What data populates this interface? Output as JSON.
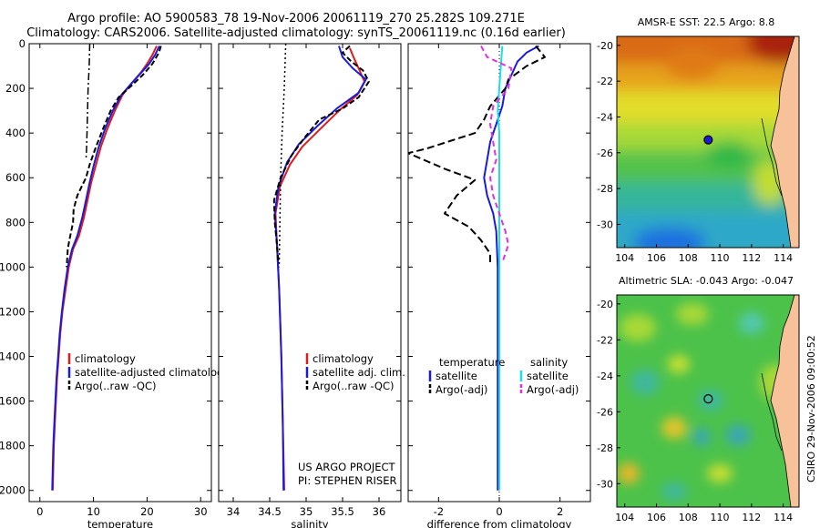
{
  "header": {
    "line1": "Argo profile: AO 5900583_78 19-Nov-2006 20061119_270 25.282S 109.271E",
    "line2": "Climatology: CARS2006. Satellite-adjusted climatology: synTS_20061119.nc (0.16d earlier)"
  },
  "side_label": "CSIRO 29-Nov-2006 09:00:52",
  "colors": {
    "clim": "#e01b1b",
    "sat": "#1a1adb",
    "argo": "#000000",
    "sat_sal": "#19e0e8",
    "argo_sal": "#e22ee2"
  },
  "chart_data": [
    {
      "type": "line",
      "xlabel": "temperature",
      "ylabel": "",
      "xlim": [
        -2,
        32
      ],
      "ylim": [
        2050,
        0
      ],
      "xticks": [
        0,
        10,
        20,
        30
      ],
      "yticks": [
        0,
        200,
        400,
        600,
        800,
        1000,
        1200,
        1400,
        1600,
        1800,
        2000
      ],
      "legend": [
        "climatology",
        "satellite-adjusted climatology",
        "Argo(..raw -QC)"
      ],
      "series": [
        {
          "name": "climatology",
          "color": "clim",
          "dash": "",
          "points": [
            [
              21.8,
              10
            ],
            [
              21,
              50
            ],
            [
              20,
              90
            ],
            [
              18.8,
              130
            ],
            [
              17,
              180
            ],
            [
              15.4,
              230
            ],
            [
              14,
              300
            ],
            [
              12.6,
              380
            ],
            [
              11.4,
              460
            ],
            [
              10.5,
              540
            ],
            [
              9.6,
              620
            ],
            [
              8.9,
              700
            ],
            [
              8.2,
              780
            ],
            [
              7.3,
              860
            ],
            [
              6.2,
              920
            ],
            [
              5.4,
              1000
            ],
            [
              4.8,
              1100
            ],
            [
              4.2,
              1200
            ],
            [
              3.8,
              1300
            ],
            [
              3.5,
              1400
            ],
            [
              3.2,
              1500
            ],
            [
              3,
              1600
            ],
            [
              2.8,
              1700
            ],
            [
              2.6,
              1800
            ],
            [
              2.5,
              1900
            ],
            [
              2.4,
              2000
            ]
          ]
        },
        {
          "name": "satellite-adjusted climatology",
          "color": "sat",
          "dash": "",
          "points": [
            [
              22.3,
              10
            ],
            [
              21.5,
              50
            ],
            [
              20.4,
              90
            ],
            [
              18.9,
              130
            ],
            [
              17,
              180
            ],
            [
              15.2,
              230
            ],
            [
              13.6,
              300
            ],
            [
              12.2,
              380
            ],
            [
              11,
              460
            ],
            [
              10.1,
              540
            ],
            [
              9.3,
              620
            ],
            [
              8.6,
              700
            ],
            [
              7.9,
              780
            ],
            [
              7,
              860
            ],
            [
              6,
              920
            ],
            [
              5.2,
              1000
            ],
            [
              4.6,
              1100
            ],
            [
              4.1,
              1200
            ],
            [
              3.7,
              1300
            ],
            [
              3.4,
              1400
            ],
            [
              3.1,
              1500
            ],
            [
              2.9,
              1600
            ],
            [
              2.7,
              1700
            ],
            [
              2.5,
              1800
            ],
            [
              2.4,
              1900
            ],
            [
              2.3,
              2000
            ]
          ]
        },
        {
          "name": "Argo(..raw -QC)",
          "color": "argo",
          "dash": "6,3",
          "points": [
            [
              22.6,
              10
            ],
            [
              22.2,
              40
            ],
            [
              21,
              90
            ],
            [
              19.2,
              140
            ],
            [
              17,
              190
            ],
            [
              14.7,
              240
            ],
            [
              13.2,
              300
            ],
            [
              11.8,
              380
            ],
            [
              10.5,
              460
            ],
            [
              9.3,
              540
            ],
            [
              8.6,
              600
            ],
            [
              7.8,
              640
            ],
            [
              7,
              680
            ],
            [
              6.3,
              740
            ],
            [
              6.2,
              800
            ],
            [
              5.5,
              880
            ],
            [
              5.2,
              920
            ],
            [
              5,
              1000
            ]
          ]
        },
        {
          "name": "",
          "color": "argo",
          "dash": "8,3,2,3",
          "points": [
            [
              9.3,
              0
            ],
            [
              9.2,
              100
            ],
            [
              9,
              200
            ],
            [
              8.9,
              300
            ],
            [
              8.8,
              400
            ],
            [
              8.7,
              480
            ],
            [
              8.6,
              520
            ]
          ]
        }
      ]
    },
    {
      "type": "line",
      "xlabel": "salinity",
      "ylabel": "",
      "xlim": [
        33.8,
        36.3
      ],
      "ylim": [
        2050,
        0
      ],
      "xticks": [
        34,
        34.5,
        35,
        35.5,
        36
      ],
      "legend": [
        "climatology",
        "satellite adj. clim.",
        "Argo(..raw -QC)"
      ],
      "annot": [
        "US ARGO PROJECT",
        "PI: STEPHEN RISER"
      ],
      "series": [
        {
          "name": "climatology",
          "color": "clim",
          "dash": "",
          "points": [
            [
              35.6,
              20
            ],
            [
              35.65,
              60
            ],
            [
              35.72,
              110
            ],
            [
              35.8,
              170
            ],
            [
              35.7,
              230
            ],
            [
              35.45,
              300
            ],
            [
              35.2,
              380
            ],
            [
              34.95,
              460
            ],
            [
              34.78,
              540
            ],
            [
              34.64,
              640
            ],
            [
              34.58,
              760
            ],
            [
              34.6,
              900
            ],
            [
              34.63,
              1100
            ],
            [
              34.66,
              1400
            ],
            [
              34.68,
              1700
            ],
            [
              34.7,
              2000
            ]
          ]
        },
        {
          "name": "satellite adj. clim.",
          "color": "sat",
          "dash": "",
          "points": [
            [
              35.45,
              10
            ],
            [
              35.5,
              60
            ],
            [
              35.64,
              110
            ],
            [
              35.82,
              160
            ],
            [
              35.72,
              220
            ],
            [
              35.42,
              290
            ],
            [
              35.15,
              370
            ],
            [
              34.9,
              450
            ],
            [
              34.74,
              530
            ],
            [
              34.62,
              640
            ],
            [
              34.57,
              760
            ],
            [
              34.6,
              900
            ],
            [
              34.63,
              1100
            ],
            [
              34.66,
              1400
            ],
            [
              34.68,
              1700
            ],
            [
              34.69,
              2000
            ]
          ]
        },
        {
          "name": "Argo(..raw -QC)",
          "color": "argo",
          "dash": "6,3",
          "points": [
            [
              35.6,
              10
            ],
            [
              35.5,
              40
            ],
            [
              35.62,
              80
            ],
            [
              35.78,
              120
            ],
            [
              35.86,
              170
            ],
            [
              35.72,
              240
            ],
            [
              35.5,
              290
            ],
            [
              35.18,
              340
            ],
            [
              34.98,
              420
            ],
            [
              34.8,
              500
            ],
            [
              34.65,
              600
            ],
            [
              34.56,
              700
            ],
            [
              34.57,
              800
            ],
            [
              34.6,
              900
            ],
            [
              34.62,
              980
            ]
          ]
        },
        {
          "name": "",
          "color": "argo",
          "dash": "2,3",
          "points": [
            [
              34.72,
              0
            ],
            [
              34.7,
              200
            ],
            [
              34.67,
              400
            ],
            [
              34.65,
              600
            ],
            [
              34.64,
              800
            ],
            [
              34.63,
              1000
            ]
          ]
        }
      ]
    },
    {
      "type": "line",
      "xlabel": "difference from climatology",
      "ylabel": "",
      "xlim": [
        -3,
        3
      ],
      "ylim": [
        2050,
        0
      ],
      "xticks": [
        -2,
        0,
        2
      ],
      "legend_groups": [
        {
          "title": "temperature",
          "items": [
            "satellite",
            "Argo(-adj)"
          ]
        },
        {
          "title": "salinity",
          "items": [
            "satellite",
            "Argo(-adj)"
          ]
        }
      ],
      "series": [
        {
          "name": "satellite",
          "color": "sat",
          "dash": "",
          "points": [
            [
              1.3,
              10
            ],
            [
              0.9,
              40
            ],
            [
              0.6,
              80
            ],
            [
              0.4,
              140
            ],
            [
              0.2,
              200
            ],
            [
              0.1,
              280
            ],
            [
              -0.1,
              360
            ],
            [
              -0.3,
              440
            ],
            [
              -0.4,
              520
            ],
            [
              -0.5,
              600
            ],
            [
              -0.4,
              680
            ],
            [
              -0.2,
              760
            ],
            [
              -0.1,
              840
            ],
            [
              -0.05,
              1000
            ],
            [
              -0.05,
              1300
            ],
            [
              -0.05,
              1600
            ],
            [
              -0.05,
              2000
            ]
          ]
        },
        {
          "name": "Argo(-adj)",
          "color": "argo",
          "dash": "8,4",
          "points": [
            [
              1.2,
              10
            ],
            [
              1.5,
              60
            ],
            [
              0.9,
              100
            ],
            [
              0.3,
              160
            ],
            [
              0.2,
              200
            ],
            [
              -0.3,
              280
            ],
            [
              -0.5,
              340
            ],
            [
              -0.8,
              400
            ],
            [
              -2.4,
              470
            ],
            [
              -3,
              490
            ],
            [
              -1.8,
              560
            ],
            [
              -0.8,
              610
            ],
            [
              -1.4,
              680
            ],
            [
              -1.8,
              760
            ],
            [
              -1,
              820
            ],
            [
              -0.6,
              880
            ],
            [
              -0.3,
              940
            ],
            [
              -0.3,
              980
            ]
          ]
        },
        {
          "name": "satellite",
          "color": "sat_sal",
          "dash": "",
          "points": [
            [
              0.1,
              10
            ],
            [
              0.05,
              100
            ],
            [
              0,
              200
            ],
            [
              -0.05,
              300
            ],
            [
              0,
              400
            ],
            [
              0,
              600
            ],
            [
              0,
              800
            ],
            [
              0,
              1000
            ],
            [
              0,
              1500
            ],
            [
              0,
              2000
            ]
          ]
        },
        {
          "name": "Argo(-adj)",
          "color": "argo_sal",
          "dash": "6,4",
          "points": [
            [
              -0.6,
              10
            ],
            [
              -0.4,
              60
            ],
            [
              0.4,
              110
            ],
            [
              0.3,
              200
            ],
            [
              -0.2,
              280
            ],
            [
              -0.3,
              360
            ],
            [
              -0.2,
              440
            ],
            [
              -0.1,
              520
            ],
            [
              -0.3,
              600
            ],
            [
              -0.2,
              680
            ],
            [
              0,
              760
            ],
            [
              0.2,
              840
            ],
            [
              0.3,
              900
            ],
            [
              0.1,
              980
            ]
          ]
        }
      ]
    }
  ],
  "maps": [
    {
      "title": "AMSR-E SST: 22.5 Argo: 8.8",
      "xlim": [
        103.5,
        115
      ],
      "ylim": [
        -31.3,
        -19.5
      ],
      "xticks": [
        104,
        106,
        108,
        110,
        112,
        114
      ],
      "yticks": [
        -20,
        -22,
        -24,
        -26,
        -28,
        -30
      ],
      "marker": [
        109.27,
        -25.28
      ],
      "marker_filled": true
    },
    {
      "title": "Altimetric SLA: -0.043 Argo: -0.047",
      "xlim": [
        103.5,
        115
      ],
      "ylim": [
        -31.3,
        -19.5
      ],
      "xticks": [
        104,
        106,
        108,
        110,
        112,
        114
      ],
      "yticks": [
        -20,
        -22,
        -24,
        -26,
        -28,
        -30
      ],
      "marker": [
        109.27,
        -25.28
      ],
      "marker_filled": false
    }
  ]
}
